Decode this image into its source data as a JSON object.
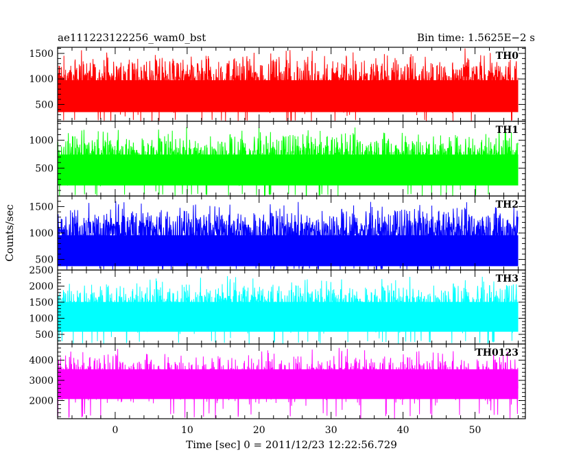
{
  "chart_data": {
    "type": "line",
    "title_left": "ae111223122256_wam0_bst",
    "title_right": "Bin time: 1.5625E−2 s",
    "xlabel": "Time [sec] 0 = 2011/12/23 12:22:56.729",
    "ylabel": "Counts/sec",
    "xlim": [
      -8,
      57
    ],
    "x_ticks": [
      0,
      10,
      20,
      30,
      40,
      50
    ],
    "x_minor_step": 2,
    "x_data_range": [
      -8,
      56
    ],
    "bin_time": 0.015625,
    "grid": false,
    "panels": [
      {
        "name": "TH0",
        "color": "#ff0000",
        "ylim": [
          170,
          1620
        ],
        "ticks": [
          500,
          1000,
          1500
        ],
        "minor_step": 100,
        "level": 700,
        "low": 200,
        "high": 1450,
        "spike": 1620
      },
      {
        "name": "TH1",
        "color": "#00ff00",
        "ylim": [
          0,
          1340
        ],
        "ticks": [
          500,
          1000
        ],
        "minor_step": 100,
        "level": 500,
        "low": 40,
        "high": 1150,
        "spike": 1340
      },
      {
        "name": "TH2",
        "color": "#0000ff",
        "ylim": [
          300,
          1700
        ],
        "ticks": [
          500,
          1000,
          1500
        ],
        "minor_step": 100,
        "level": 700,
        "low": 330,
        "high": 1500,
        "spike": 1700
      },
      {
        "name": "TH3",
        "color": "#00ffff",
        "ylim": [
          200,
          2500
        ],
        "ticks": [
          500,
          1000,
          1500,
          2000,
          2500
        ],
        "minor_step": 100,
        "level": 1100,
        "low": 300,
        "high": 2150,
        "spike": 2500
      },
      {
        "name": "TH0123",
        "color": "#ff00ff",
        "ylim": [
          1100,
          4800
        ],
        "ticks": [
          2000,
          3000,
          4000
        ],
        "minor_step": 200,
        "level": 2900,
        "low": 1400,
        "high": 4350,
        "spike": 4800
      }
    ]
  }
}
